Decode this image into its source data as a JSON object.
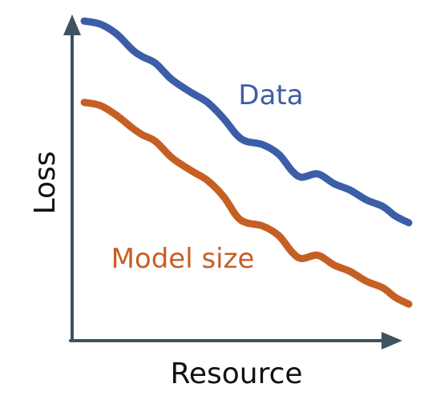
{
  "chart_data": {
    "type": "line",
    "xlabel": "Resource",
    "ylabel": "Loss",
    "xlim": [
      0,
      100
    ],
    "ylim": [
      0,
      100
    ],
    "grid": false,
    "series": [
      {
        "name": "Data",
        "color": "#3c5ea8",
        "x": [
          0,
          5,
          10,
          15,
          18,
          22,
          27,
          33,
          38,
          43,
          47,
          50,
          55,
          60,
          64,
          67,
          72,
          77,
          82,
          87,
          92,
          96,
          100
        ],
        "y": [
          97,
          96,
          93,
          88,
          86,
          84,
          79,
          75,
          72,
          67,
          62,
          60,
          59,
          56,
          51,
          49,
          50,
          47,
          45,
          42,
          40,
          37,
          35
        ]
      },
      {
        "name": "Model size",
        "color": "#c65f24",
        "x": [
          0,
          5,
          10,
          15,
          18,
          22,
          27,
          33,
          38,
          43,
          47,
          50,
          55,
          60,
          64,
          67,
          72,
          77,
          82,
          87,
          92,
          96,
          100
        ],
        "y": [
          72,
          71,
          68,
          64,
          62,
          60,
          55,
          51,
          48,
          43,
          37,
          35,
          34,
          31,
          26,
          24,
          25,
          22,
          20,
          17,
          15,
          12,
          10
        ]
      }
    ]
  }
}
